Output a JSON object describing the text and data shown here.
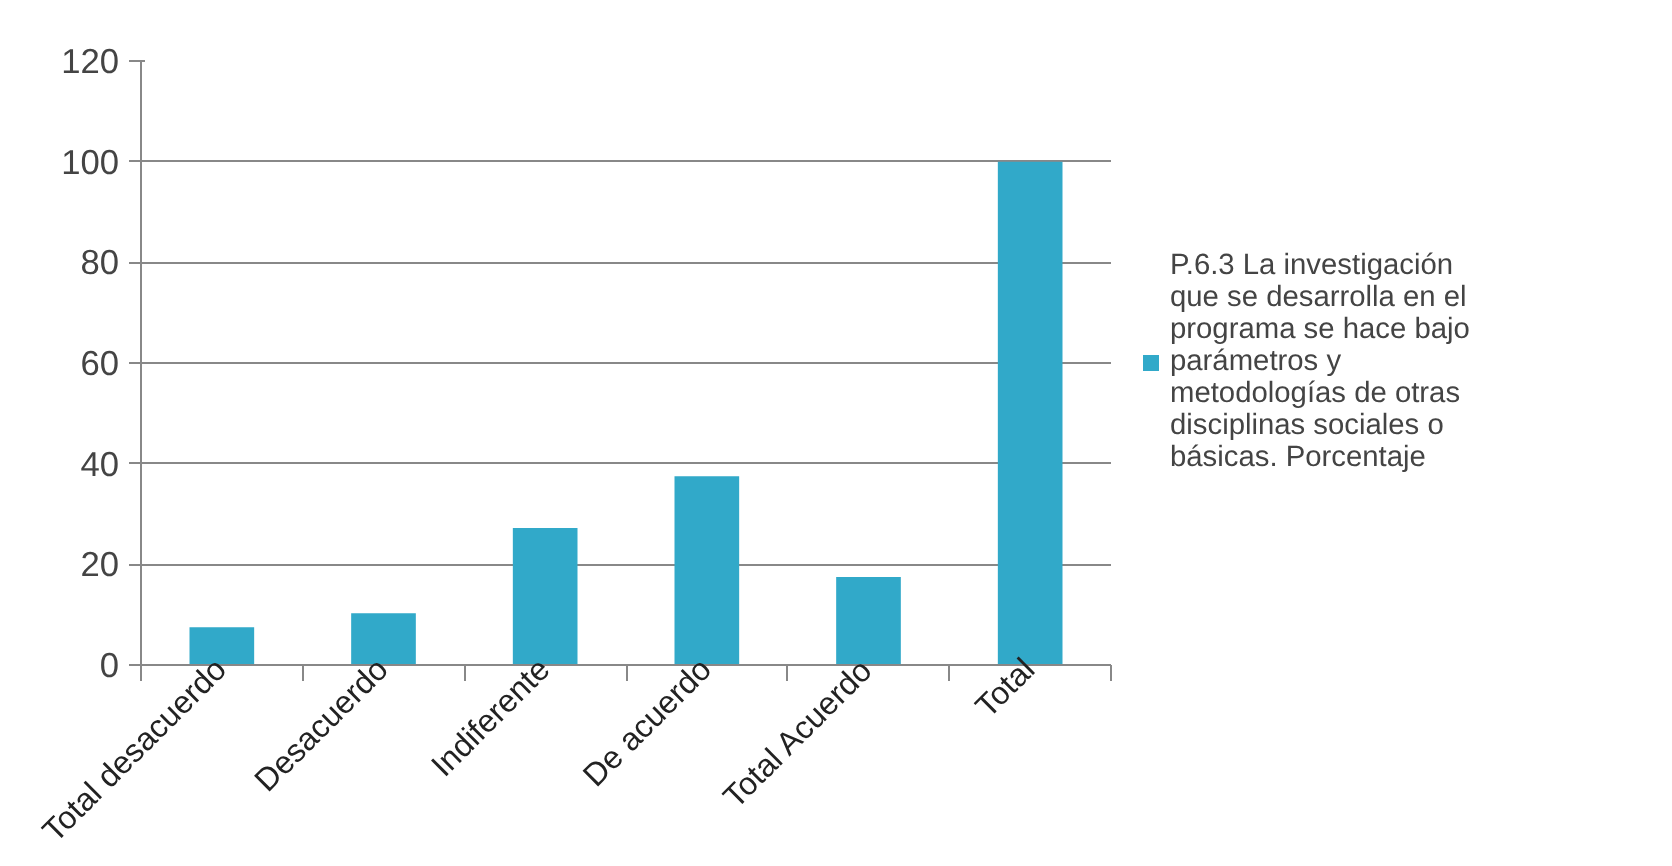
{
  "chart_data": {
    "type": "bar",
    "categories": [
      "Total desacuerdo",
      "Desacuerdo",
      "Indiferente",
      "De acuerdo",
      "Total Acuerdo",
      "Total"
    ],
    "series": [
      {
        "name": "P.6.3 La investigación que se desarrolla en el programa se hace bajo parámetros y metodologías de otras disciplinas sociales o básicas. Porcentaje",
        "color": "#31a9c9",
        "values": [
          7.5,
          10.3,
          27.2,
          37.5,
          17.5,
          100
        ]
      }
    ],
    "ylim": [
      0,
      120
    ],
    "yticks": [
      0,
      20,
      40,
      60,
      80,
      100,
      120
    ],
    "grid": "y",
    "legend": "right"
  }
}
